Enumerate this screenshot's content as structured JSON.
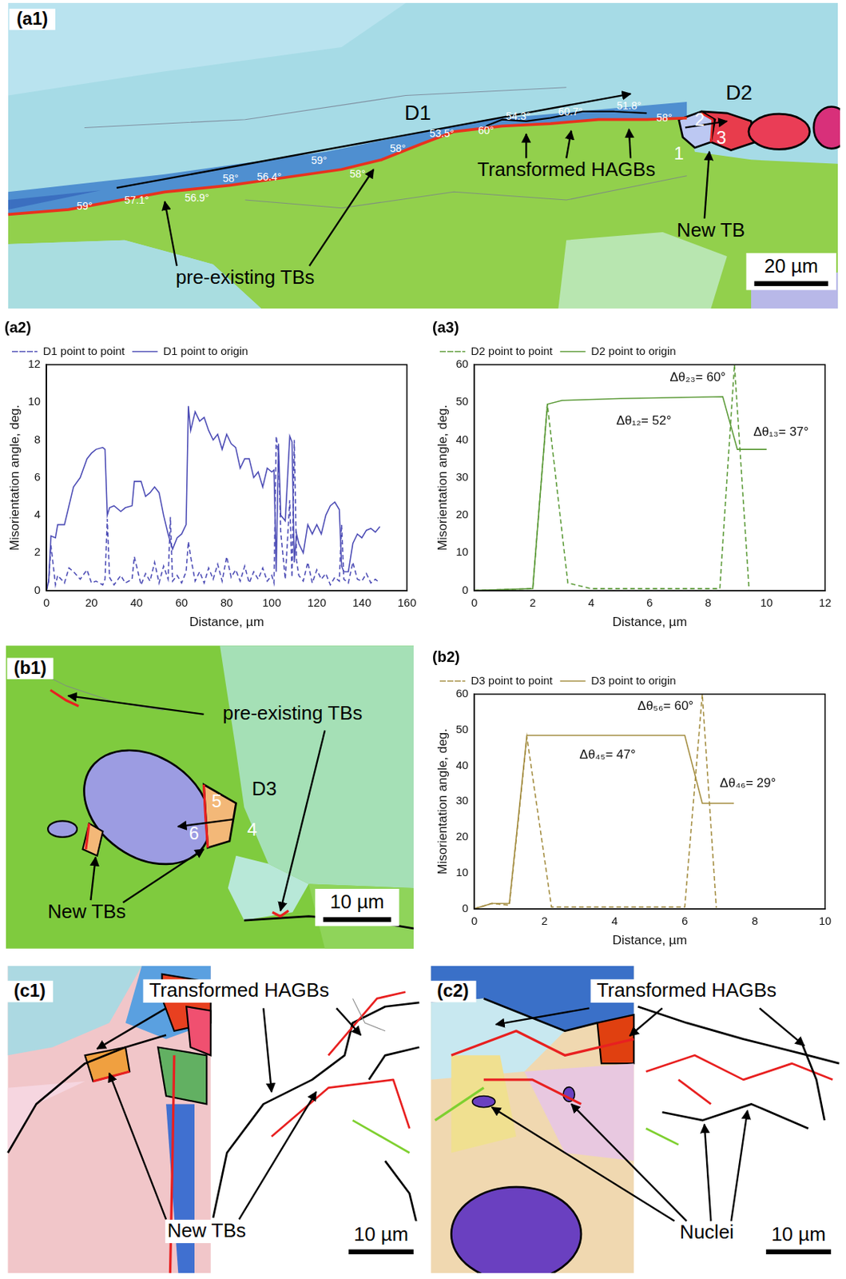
{
  "chart_data": [
    {
      "type": "line",
      "panel_label": "(a2)",
      "x_label": "Distance, µm",
      "y_label": "Misorientation angle, deg.",
      "xlim": [
        0,
        160
      ],
      "xticks": [
        0,
        20,
        40,
        60,
        80,
        100,
        120,
        140,
        160
      ],
      "ylim": [
        0,
        12
      ],
      "yticks": [
        0,
        2,
        4,
        6,
        8,
        10,
        12
      ],
      "grid": false,
      "legend": "top",
      "annotations": [],
      "series": [
        {
          "name": "D1 point to point",
          "color": "#4c4cb5",
          "line_style": "dashed",
          "x": [
            0,
            1,
            2,
            4,
            5,
            8,
            10,
            12,
            15,
            18,
            20,
            22,
            25,
            26,
            27,
            28,
            30,
            33,
            35,
            38,
            39,
            42,
            44,
            46,
            48,
            50,
            52,
            54,
            55,
            56,
            58,
            60,
            62,
            63,
            64,
            66,
            68,
            70,
            72,
            74,
            76,
            78,
            80,
            82,
            84,
            86,
            88,
            90,
            92,
            94,
            96,
            98,
            100,
            101,
            102,
            103,
            104,
            106,
            108,
            109,
            110,
            111,
            112,
            114,
            116,
            118,
            120,
            122,
            124,
            126,
            128,
            130,
            131,
            132,
            134,
            136,
            138,
            140,
            142,
            144,
            146,
            148
          ],
          "values": [
            0,
            0.5,
            2.4,
            0.3,
            0.8,
            0.4,
            1.2,
            1,
            0.6,
            1.1,
            0.4,
            0.5,
            0.3,
            0.6,
            3.8,
            0.7,
            0.3,
            0.8,
            0.4,
            0.6,
            1.8,
            0.3,
            0.9,
            0.5,
            1.5,
            0.4,
            1.3,
            0.6,
            3.9,
            0.5,
            0.8,
            0.4,
            1,
            2.6,
            1.8,
            0.5,
            1,
            0.4,
            1.2,
            0.6,
            1.4,
            0.5,
            1.8,
            0.7,
            1.1,
            0.5,
            1.3,
            0.4,
            1,
            0.6,
            1.2,
            0.5,
            0.8,
            0.4,
            8.2,
            7.2,
            3.1,
            0.6,
            4.8,
            0.7,
            8,
            1.6,
            0.8,
            0.5,
            1.5,
            0.4,
            1.1,
            0.6,
            0.9,
            0.3,
            0.7,
            0.5,
            3.5,
            0.6,
            0.4,
            1.5,
            0.6,
            0.5,
            0.9,
            0.4,
            0.6,
            0.4
          ]
        },
        {
          "name": "D1 point to origin",
          "color": "#4c4cb5",
          "line_style": "solid",
          "x": [
            0,
            1,
            2,
            4,
            5,
            8,
            10,
            12,
            15,
            18,
            20,
            22,
            25,
            26,
            27,
            28,
            30,
            33,
            35,
            38,
            39,
            42,
            44,
            46,
            48,
            50,
            52,
            54,
            55,
            56,
            58,
            60,
            62,
            63,
            64,
            66,
            68,
            70,
            72,
            74,
            76,
            78,
            80,
            82,
            84,
            86,
            88,
            90,
            92,
            94,
            96,
            98,
            100,
            101,
            102,
            103,
            104,
            106,
            108,
            109,
            110,
            111,
            112,
            114,
            116,
            118,
            120,
            122,
            124,
            126,
            128,
            130,
            131,
            132,
            134,
            136,
            138,
            140,
            142,
            144,
            146,
            148
          ],
          "values": [
            0,
            0.5,
            2.9,
            2.8,
            3.5,
            3.5,
            4.5,
            5.5,
            6,
            7,
            7.3,
            7.5,
            7.6,
            7.5,
            4,
            4.4,
            4.5,
            4.2,
            4.4,
            4.5,
            5.8,
            5.8,
            5,
            5.2,
            5.5,
            5.2,
            4,
            3,
            2.6,
            2.2,
            2.8,
            3,
            3.5,
            9.8,
            8.5,
            9.5,
            9,
            9.2,
            8.5,
            8,
            8.3,
            7.5,
            8.3,
            7.8,
            7.6,
            6.5,
            7,
            7,
            6,
            6.3,
            5.5,
            6.5,
            6.3,
            6.4,
            1,
            7.8,
            4,
            3.7,
            8.2,
            7.9,
            1.5,
            3,
            2.5,
            2,
            3.5,
            3,
            3.5,
            3,
            4,
            4.5,
            4.7,
            4.3,
            1.3,
            1,
            1,
            2.5,
            3,
            2.8,
            3.2,
            3.3,
            3.1,
            3.4
          ]
        }
      ]
    },
    {
      "type": "line",
      "panel_label": "(a3)",
      "x_label": "Distance, µm",
      "y_label": "Misorientation angle, deg.",
      "xlim": [
        0,
        12
      ],
      "xticks": [
        0,
        2,
        4,
        6,
        8,
        10,
        12
      ],
      "ylim": [
        0,
        60
      ],
      "yticks": [
        0,
        10,
        20,
        30,
        40,
        50,
        60
      ],
      "grid": false,
      "legend": "top",
      "annotations": [
        "Δθ₁₂= 52°",
        "Δθ₂₃= 60°",
        "Δθ₁₃= 37°"
      ],
      "series": [
        {
          "name": "D2 point to point",
          "color": "#5b9a37",
          "line_style": "dashed",
          "x": [
            0,
            2,
            2.5,
            3.2,
            4,
            8.4,
            8.9,
            9.4
          ],
          "values": [
            0,
            0.5,
            49.5,
            2,
            0.5,
            0.5,
            60,
            0.3
          ]
        },
        {
          "name": "D2 point to origin",
          "color": "#5b9a37",
          "line_style": "solid",
          "x": [
            0,
            2,
            2.5,
            3,
            5,
            8.5,
            9,
            10
          ],
          "values": [
            0,
            0.5,
            49.5,
            50.5,
            51,
            51.5,
            37.5,
            37.5
          ]
        }
      ]
    },
    {
      "type": "line",
      "panel_label": "(b2)",
      "x_label": "Distance, µm",
      "y_label": "Misorientation angle, deg.",
      "xlim": [
        0,
        10
      ],
      "xticks": [
        0,
        2,
        4,
        6,
        8,
        10
      ],
      "ylim": [
        0,
        60
      ],
      "yticks": [
        0,
        10,
        20,
        30,
        40,
        50,
        60
      ],
      "grid": false,
      "legend": "top",
      "annotations": [
        "Δθ₄₅= 47°",
        "Δθ₅₆= 60°",
        "Δθ₄₆= 29°"
      ],
      "series": [
        {
          "name": "D3 point to point",
          "color": "#a38c3f",
          "line_style": "dashed",
          "x": [
            0,
            0.5,
            1,
            1.5,
            2.2,
            4,
            6,
            6.5,
            6.9
          ],
          "values": [
            0,
            1.5,
            1,
            48,
            0.5,
            0.5,
            0.5,
            60,
            0.3
          ]
        },
        {
          "name": "D3 point to origin",
          "color": "#a38c3f",
          "line_style": "solid",
          "x": [
            0,
            0.5,
            1,
            1.5,
            3,
            6,
            6.5,
            7.4
          ],
          "values": [
            0,
            1.5,
            1.5,
            48.5,
            48.5,
            48.5,
            29.5,
            29.5
          ]
        }
      ]
    }
  ],
  "micrographs": [
    {
      "panel_label": "(a1)",
      "annotations": [
        "D1",
        "D2",
        "Transformed HAGBs",
        "New TB",
        "pre-existing TBs"
      ],
      "grain_numbers": [
        "2",
        "1",
        "3"
      ],
      "angles": [
        "59°",
        "57.1°",
        "56.9°",
        "58°",
        "56.4°",
        "59°",
        "58°",
        "58°",
        "53.5°",
        "60°",
        "54.3°",
        "60.7°",
        "51.8°",
        "58°"
      ],
      "scale_bar": "20 µm"
    },
    {
      "panel_label": "(b1)",
      "annotations": [
        "pre-existing TBs",
        "D3",
        "New TBs"
      ],
      "grain_numbers": [
        "5",
        "4",
        "6"
      ],
      "scale_bar": "10 µm"
    },
    {
      "panel_label": "(c1)",
      "annotations": [
        "Transformed HAGBs",
        "New TBs"
      ],
      "scale_bar": "10 µm"
    },
    {
      "panel_label": "(c2)",
      "annotations": [
        "Transformed HAGBs",
        "Nuclei"
      ],
      "scale_bar": "10 µm"
    }
  ]
}
